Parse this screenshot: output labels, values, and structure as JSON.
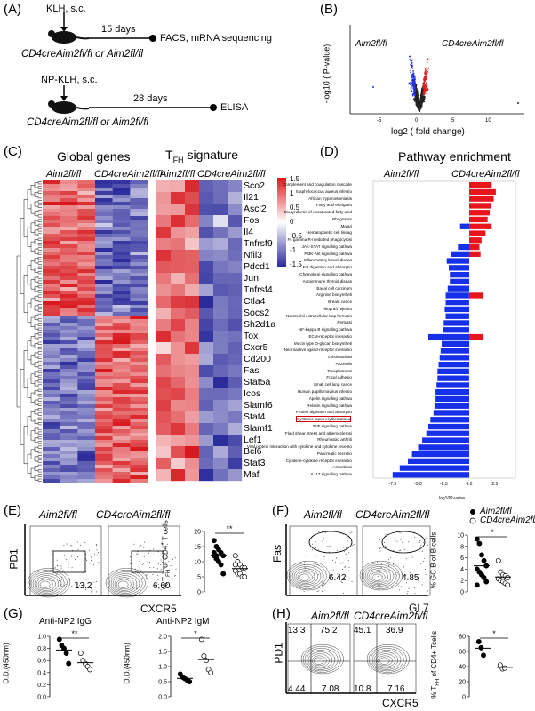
{
  "panels": {
    "A": "(A)",
    "B": "(B)",
    "C": "(C)",
    "D": "(D)",
    "E": "(E)",
    "F": "(F)",
    "G": "(G)",
    "H": "(H)"
  },
  "panelA": {
    "step1_top": "KLH, s.c.",
    "days1": "15 days",
    "assay1": "FACS, mRNA sequencing",
    "mice1": "CD4creAim2fl/fl or Aim2fl/fl",
    "step2_top": "NP-KLH, s.c.",
    "days2": "28 days",
    "assay2": "ELISA",
    "mice2": "CD4creAim2fl/fl or Aim2fl/fl"
  },
  "panelB": {
    "left_label": "Aim2fl/fl",
    "right_label": "CD4creAim2fl/fl",
    "ylabel": "-log10 ( P-value)",
    "xlabel": "log2 ( fold change)",
    "xticks": [
      "-5",
      "0",
      "5",
      "10"
    ]
  },
  "panelC": {
    "title1": "Global genes",
    "title2": "TFH signature",
    "group1": "Aim2fl/fl",
    "group2": "CD4creAim2fl/fl",
    "scale": [
      "1.5",
      "1",
      "0.5",
      "0",
      "-0.5",
      "-1",
      "-1.5"
    ],
    "genes": [
      "Sco2",
      "Il21",
      "Ascl2",
      "Fos",
      "Il4",
      "Tnfrsf9",
      "Nfil3",
      "Pdcd1",
      "Jun",
      "Tnfrsf4",
      "Ctla4",
      "Socs2",
      "Sh2d1a",
      "Tox",
      "Cxcr5",
      "Cd200",
      "Fas",
      "Stat5a",
      "Icos",
      "Slamf6",
      "Stat4",
      "Slamf1",
      "Lef1",
      "Bcl6",
      "Stat3",
      "Maf"
    ]
  },
  "panelD": {
    "title": "Pathway enrichment",
    "group1": "Aim2fl/fl",
    "group2": "CD4creAim2fl/fl",
    "xlabel": "log10P-value",
    "xticks": [
      "-7.5",
      "-5.0",
      "-2.5",
      "0.0",
      "2.5"
    ],
    "highlight": "Systemic lupus erythematosus",
    "pathways": [
      "Complement and coagulation cascade",
      "Staphylococcus aureus infectio",
      "African trypanosomiasis",
      "Fatty acid elongatio",
      "Biosynthesis of unsaturated fatty acid",
      "Phagosom",
      "Malari",
      "Hematopoietic cell lineag",
      "Fc gamma R-mediated phagocytosi",
      "JAK-STAT signaling pathwa",
      "PI3K-Akt signaling pathwa",
      "Inflammatory bowel diseas",
      "Fat digestion and absorptio",
      "Chemokine signaling pathwa",
      "Autoimmune thyroid diseas",
      "Basal cell carcinom",
      "Arginine biosyntheti",
      "Breast cance",
      "Allograft rejectio",
      "Neutrophil extracellular trap formatio",
      "Pertussi",
      "NF-kappa B signaling pathwa",
      "ECM-receptor interactio",
      "Mucin type O-glycan biosyntheti",
      "Neuroactive ligand-receptor interactio",
      "Leishmaniasi",
      "Alcoholis",
      "Toxoplasmosi",
      "Focal adhesio",
      "Small cell lung cance",
      "Human papillomavirus infectio",
      "Apelin signaling pathwa",
      "Relaxin signaling pathwa",
      "Protein digestion and absorptio",
      "Systemic lupus erythematosu",
      "TNF signaling pathwa",
      "Fluid shear stress and atherosclerosi",
      "Rheumatoid arthriti",
      "Viral protein interaction with cytokine and cytokine recepto",
      "Pancreatic secretio",
      "Cytokine-cytokine receptor interactio",
      "Amoebiasi",
      "IL-17 signaling pathwa"
    ],
    "values": [
      2.2,
      2.6,
      2.4,
      2.1,
      2.0,
      1.8,
      2.2,
      1.6,
      1.2,
      1.0,
      -1.8,
      -2.2,
      -2.0,
      -1.9,
      -1.9,
      -2.1,
      -2.3,
      -2.3,
      -2.4,
      -2.3,
      -2.5,
      -2.6,
      -4.0,
      -2.7,
      -2.8,
      -2.9,
      -3.0,
      -3.1,
      -3.1,
      -3.2,
      -3.3,
      -3.3,
      -3.4,
      -3.5,
      -3.8,
      -4.0,
      -4.2,
      -4.6,
      -5.0,
      -5.6,
      -6.0,
      -6.8,
      -7.5
    ],
    "mixed": [
      [
        6,
        -0.9
      ],
      [
        9,
        -1.1
      ],
      [
        16,
        1.4
      ],
      [
        22,
        1.4
      ],
      [
        10,
        1.1
      ]
    ]
  },
  "panelE": {
    "ylabel": "PD1",
    "xlabel": "CXCR5",
    "label1": "Aim2fl/fl",
    "label2": "CD4creAim2fl/fl",
    "gate1": "13.2",
    "gate2": "6.60",
    "plot_ylabel": "% TFH of CD4+ T cells",
    "yticks": [
      "0",
      "5",
      "10",
      "15",
      "20"
    ],
    "sig": "**",
    "wt": [
      17,
      15,
      14,
      13,
      12,
      12,
      11,
      10,
      9,
      6,
      13,
      12
    ],
    "ko": [
      12,
      10,
      9,
      8,
      8,
      7,
      6,
      6,
      5,
      5,
      9
    ]
  },
  "panelF": {
    "ylabel": "Fas",
    "xlabel": "GL7",
    "label1": "Aim2fl/fl",
    "label2": "CD4creAim2fl/fl",
    "gate1": "6.42",
    "gate2": "4.85",
    "plot_ylabel": "% GC B of B cells",
    "yticks": [
      "0",
      "2",
      "4",
      "6",
      "8",
      "10"
    ],
    "sig": "*",
    "legend1": "Aim2fl/fl",
    "legend2": "CD4creAim2fl/fl",
    "wt": [
      9.3,
      8.5,
      6.5,
      5.5,
      4.6,
      4.0,
      3.5,
      3.0,
      2.5,
      1.8,
      1.2
    ],
    "ko": [
      5.5,
      3.5,
      3.0,
      2.8,
      2.5,
      2.3,
      2.0,
      1.8,
      1.5,
      1.2
    ]
  },
  "panelG": {
    "title1": "Anti-NP2 IgG",
    "title2": "Anti-NP2 IgM",
    "ylabel": "O.D.(450nm)",
    "ylabel2": "O.D.(450nm)",
    "yticks1": [
      "0.0",
      "0.2",
      "0.4",
      "0.6",
      "0.8",
      "1.0"
    ],
    "yticks2": [
      "0.0",
      "0.5",
      "1.0",
      "1.5",
      "2.0"
    ],
    "sig1": "**",
    "sig2": "*",
    "igg_wt": [
      0.95,
      0.85,
      0.8,
      0.72,
      0.55
    ],
    "igg_ko": [
      0.72,
      0.6,
      0.55,
      0.5,
      0.45
    ],
    "igm_wt": [
      0.75,
      0.65,
      0.6,
      0.55,
      0.5
    ],
    "igm_ko": [
      1.9,
      1.35,
      1.2,
      0.9,
      0.8
    ]
  },
  "panelH": {
    "ylabel": "PD1",
    "xlabel": "CXCR5",
    "label1": "Aim2fl/fl",
    "label2": "CD4creAim2fl/fl",
    "q1": [
      "13.3",
      "75.2",
      "4.44",
      "7.08"
    ],
    "q2": [
      "45.1",
      "36.9",
      "10.8",
      "7.16"
    ],
    "plot_ylabel": "% TFH of CD4+ Tcells",
    "yticks": [
      "0",
      "20",
      "40",
      "60",
      "80"
    ],
    "sig": "*",
    "wt": [
      73,
      65,
      55
    ],
    "ko": [
      42,
      37,
      38
    ]
  }
}
